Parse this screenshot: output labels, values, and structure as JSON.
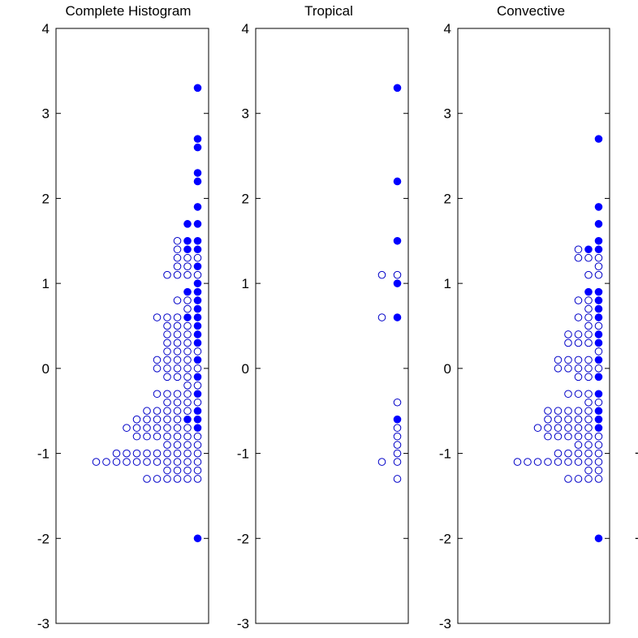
{
  "chart_data": [
    {
      "type": "scatter",
      "title": "Complete Histogram",
      "xlabel": "",
      "ylabel": "",
      "ylim": [
        -3,
        4
      ],
      "yticks": [
        "4",
        "3",
        "2",
        "1",
        "0",
        "-1",
        "-2",
        "-3"
      ],
      "ytick_values": [
        4,
        3,
        2,
        1,
        0,
        -1,
        -2,
        -3
      ],
      "grid": false,
      "colors": {
        "filled": "#0000ff",
        "open": "#0000c8"
      },
      "rows": [
        {
          "y": 3.3,
          "filled": 1,
          "open": 0
        },
        {
          "y": 2.7,
          "filled": 1,
          "open": 0
        },
        {
          "y": 2.6,
          "filled": 1,
          "open": 0
        },
        {
          "y": 2.3,
          "filled": 1,
          "open": 0
        },
        {
          "y": 2.2,
          "filled": 1,
          "open": 0
        },
        {
          "y": 1.9,
          "filled": 1,
          "open": 0
        },
        {
          "y": 1.7,
          "filled": 2,
          "open": 0
        },
        {
          "y": 1.5,
          "filled": 2,
          "open": 1
        },
        {
          "y": 1.4,
          "filled": 2,
          "open": 1
        },
        {
          "y": 1.3,
          "filled": 0,
          "open": 3
        },
        {
          "y": 1.2,
          "filled": 1,
          "open": 2
        },
        {
          "y": 1.1,
          "filled": 0,
          "open": 4
        },
        {
          "y": 1.0,
          "filled": 1,
          "open": 0
        },
        {
          "y": 0.9,
          "filled": 2,
          "open": 0
        },
        {
          "y": 0.8,
          "filled": 1,
          "open": 2
        },
        {
          "y": 0.7,
          "filled": 1,
          "open": 1
        },
        {
          "y": 0.6,
          "filled": 2,
          "open": 3
        },
        {
          "y": 0.5,
          "filled": 1,
          "open": 3
        },
        {
          "y": 0.4,
          "filled": 1,
          "open": 3
        },
        {
          "y": 0.3,
          "filled": 1,
          "open": 3
        },
        {
          "y": 0.2,
          "filled": 0,
          "open": 4
        },
        {
          "y": 0.1,
          "filled": 1,
          "open": 4
        },
        {
          "y": 0.0,
          "filled": 0,
          "open": 5
        },
        {
          "y": -0.1,
          "filled": 1,
          "open": 3
        },
        {
          "y": -0.2,
          "filled": 0,
          "open": 2
        },
        {
          "y": -0.3,
          "filled": 1,
          "open": 4
        },
        {
          "y": -0.4,
          "filled": 0,
          "open": 4
        },
        {
          "y": -0.5,
          "filled": 1,
          "open": 5
        },
        {
          "y": -0.6,
          "filled": 2,
          "open": 5
        },
        {
          "y": -0.7,
          "filled": 1,
          "open": 7
        },
        {
          "y": -0.8,
          "filled": 0,
          "open": 7
        },
        {
          "y": -0.9,
          "filled": 0,
          "open": 4
        },
        {
          "y": -1.0,
          "filled": 0,
          "open": 9
        },
        {
          "y": -1.1,
          "filled": 0,
          "open": 11
        },
        {
          "y": -1.2,
          "filled": 0,
          "open": 4
        },
        {
          "y": -1.3,
          "filled": 0,
          "open": 6
        },
        {
          "y": -2.0,
          "filled": 1,
          "open": 0
        }
      ]
    },
    {
      "type": "scatter",
      "title": "Tropical",
      "xlabel": "",
      "ylabel": "",
      "ylim": [
        -3,
        4
      ],
      "yticks": [
        "4",
        "3",
        "2",
        "1",
        "0",
        "-1",
        "-2",
        "-3"
      ],
      "ytick_values": [
        4,
        3,
        2,
        1,
        0,
        -1,
        -2,
        -3
      ],
      "grid": false,
      "colors": {
        "filled": "#0000ff",
        "open": "#0000c8"
      },
      "rows": [
        {
          "y": 3.3,
          "filled": 1,
          "open": 0
        },
        {
          "y": 2.2,
          "filled": 1,
          "open": 0
        },
        {
          "y": 1.5,
          "filled": 1,
          "open": 0
        },
        {
          "y": 1.1,
          "filled": 0,
          "open": 2
        },
        {
          "y": 1.0,
          "filled": 1,
          "open": 0
        },
        {
          "y": 0.6,
          "filled": 1,
          "open": 1
        },
        {
          "y": -0.4,
          "filled": 0,
          "open": 1
        },
        {
          "y": -0.6,
          "filled": 1,
          "open": 0
        },
        {
          "y": -0.7,
          "filled": 0,
          "open": 1
        },
        {
          "y": -0.8,
          "filled": 0,
          "open": 1
        },
        {
          "y": -0.9,
          "filled": 0,
          "open": 1
        },
        {
          "y": -1.0,
          "filled": 0,
          "open": 1
        },
        {
          "y": -1.1,
          "filled": 0,
          "open": 2
        },
        {
          "y": -1.3,
          "filled": 0,
          "open": 1
        }
      ]
    },
    {
      "type": "scatter",
      "title": "Convective",
      "xlabel": "",
      "ylabel": "",
      "ylim": [
        -3,
        4
      ],
      "yticks": [
        "4",
        "3",
        "2",
        "1",
        "0",
        "-1",
        "-2",
        "-3"
      ],
      "ytick_values": [
        4,
        3,
        2,
        1,
        0,
        -1,
        -2,
        -3
      ],
      "grid": false,
      "colors": {
        "filled": "#0000ff",
        "open": "#0000c8"
      },
      "rows": [
        {
          "y": 2.7,
          "filled": 1,
          "open": 0
        },
        {
          "y": 1.9,
          "filled": 1,
          "open": 0
        },
        {
          "y": 1.7,
          "filled": 1,
          "open": 0
        },
        {
          "y": 1.5,
          "filled": 1,
          "open": 0
        },
        {
          "y": 1.4,
          "filled": 2,
          "open": 1
        },
        {
          "y": 1.3,
          "filled": 0,
          "open": 3
        },
        {
          "y": 1.2,
          "filled": 0,
          "open": 1
        },
        {
          "y": 1.1,
          "filled": 0,
          "open": 2
        },
        {
          "y": 0.9,
          "filled": 2,
          "open": 0
        },
        {
          "y": 0.8,
          "filled": 1,
          "open": 2
        },
        {
          "y": 0.7,
          "filled": 1,
          "open": 1
        },
        {
          "y": 0.6,
          "filled": 1,
          "open": 2
        },
        {
          "y": 0.5,
          "filled": 0,
          "open": 2
        },
        {
          "y": 0.4,
          "filled": 1,
          "open": 3
        },
        {
          "y": 0.3,
          "filled": 1,
          "open": 3
        },
        {
          "y": 0.2,
          "filled": 0,
          "open": 1
        },
        {
          "y": 0.1,
          "filled": 1,
          "open": 4
        },
        {
          "y": 0.0,
          "filled": 0,
          "open": 5
        },
        {
          "y": -0.1,
          "filled": 1,
          "open": 2
        },
        {
          "y": -0.3,
          "filled": 1,
          "open": 3
        },
        {
          "y": -0.4,
          "filled": 0,
          "open": 2
        },
        {
          "y": -0.5,
          "filled": 1,
          "open": 5
        },
        {
          "y": -0.6,
          "filled": 1,
          "open": 5
        },
        {
          "y": -0.7,
          "filled": 1,
          "open": 6
        },
        {
          "y": -0.8,
          "filled": 0,
          "open": 6
        },
        {
          "y": -0.9,
          "filled": 0,
          "open": 3
        },
        {
          "y": -1.0,
          "filled": 0,
          "open": 5
        },
        {
          "y": -1.1,
          "filled": 0,
          "open": 9
        },
        {
          "y": -1.2,
          "filled": 0,
          "open": 2
        },
        {
          "y": -1.3,
          "filled": 0,
          "open": 4
        },
        {
          "y": -2.0,
          "filled": 1,
          "open": 0
        }
      ]
    }
  ],
  "next_panel_partial_ticks": [
    "-",
    "-"
  ]
}
